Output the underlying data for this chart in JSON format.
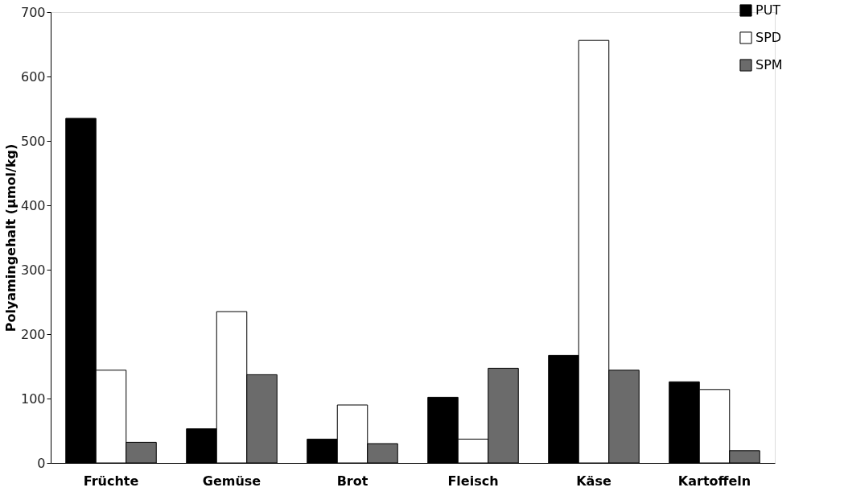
{
  "chart_data": {
    "type": "bar",
    "ylabel": "Polyamingehalt (µmol/kg)",
    "categories": [
      "Früchte",
      "Gemüse",
      "Brot",
      "Fleisch",
      "Käse",
      "Kartoffeln"
    ],
    "series": [
      {
        "name": "PUT",
        "color": "#000000",
        "values": [
          535,
          53,
          37,
          102,
          167,
          126
        ]
      },
      {
        "name": "SPD",
        "color": "#ffffff",
        "values": [
          144,
          235,
          90,
          37,
          656,
          114
        ]
      },
      {
        "name": "SPM",
        "color": "#6b6b6b",
        "values": [
          32,
          137,
          30,
          147,
          144,
          19
        ]
      }
    ],
    "ylim": [
      0,
      700
    ],
    "yticks": [
      0,
      100,
      200,
      300,
      400,
      500,
      600,
      700
    ],
    "grid": false,
    "legend": "top right"
  }
}
